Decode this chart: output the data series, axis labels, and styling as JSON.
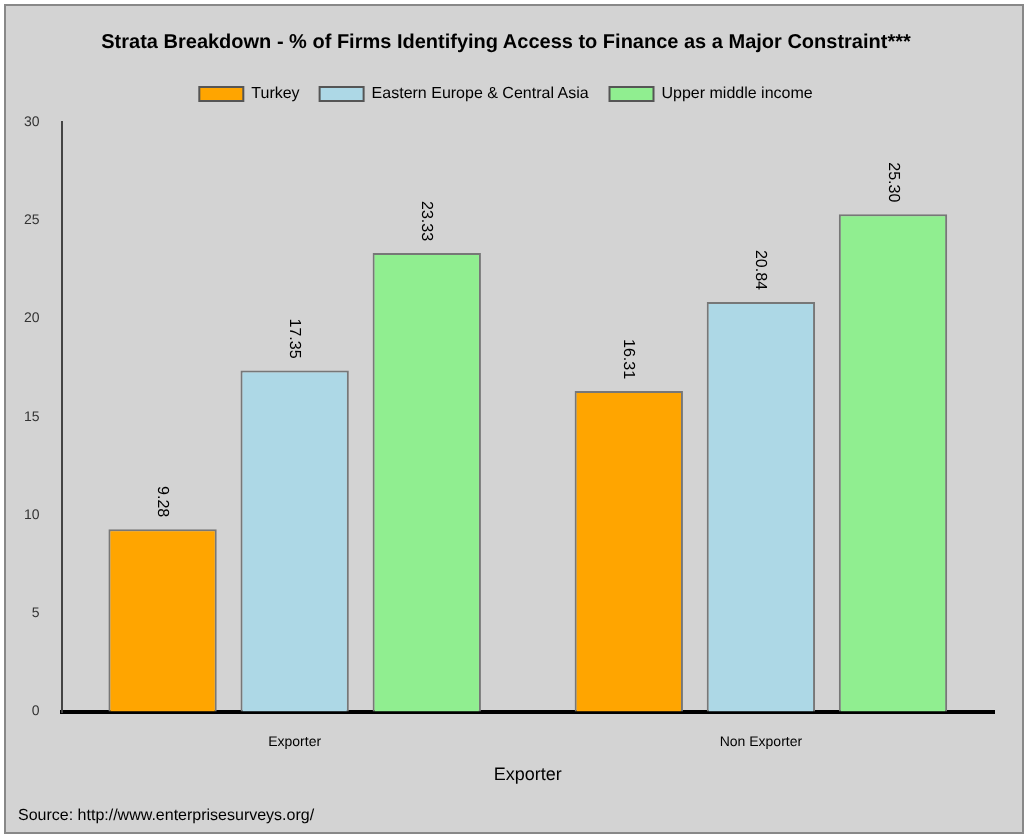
{
  "chart_data": {
    "type": "bar",
    "title": "Strata Breakdown - % of Firms Identifying Access to Finance as a Major Constraint***",
    "xlabel": "Exporter",
    "categories": [
      "Exporter",
      "Non Exporter"
    ],
    "series": [
      {
        "name": "Turkey",
        "color": "#ffa500",
        "values": [
          9.28,
          16.31
        ],
        "value_labels": [
          "9.28",
          "16.31"
        ]
      },
      {
        "name": "Eastern Europe & Central Asia",
        "color": "#add8e6",
        "values": [
          17.35,
          20.84
        ],
        "value_labels": [
          "17.35",
          "20.84"
        ]
      },
      {
        "name": "Upper middle income",
        "color": "#90ee90",
        "values": [
          23.33,
          25.3
        ],
        "value_labels": [
          "23.33",
          "25.30"
        ]
      }
    ],
    "ylim": [
      0,
      30
    ],
    "yticks": [
      0,
      5,
      10,
      15,
      20,
      25,
      30
    ],
    "grid": false,
    "legend": "top",
    "annotations": [
      "Source: http://www.enterprisesurveys.org/"
    ]
  }
}
